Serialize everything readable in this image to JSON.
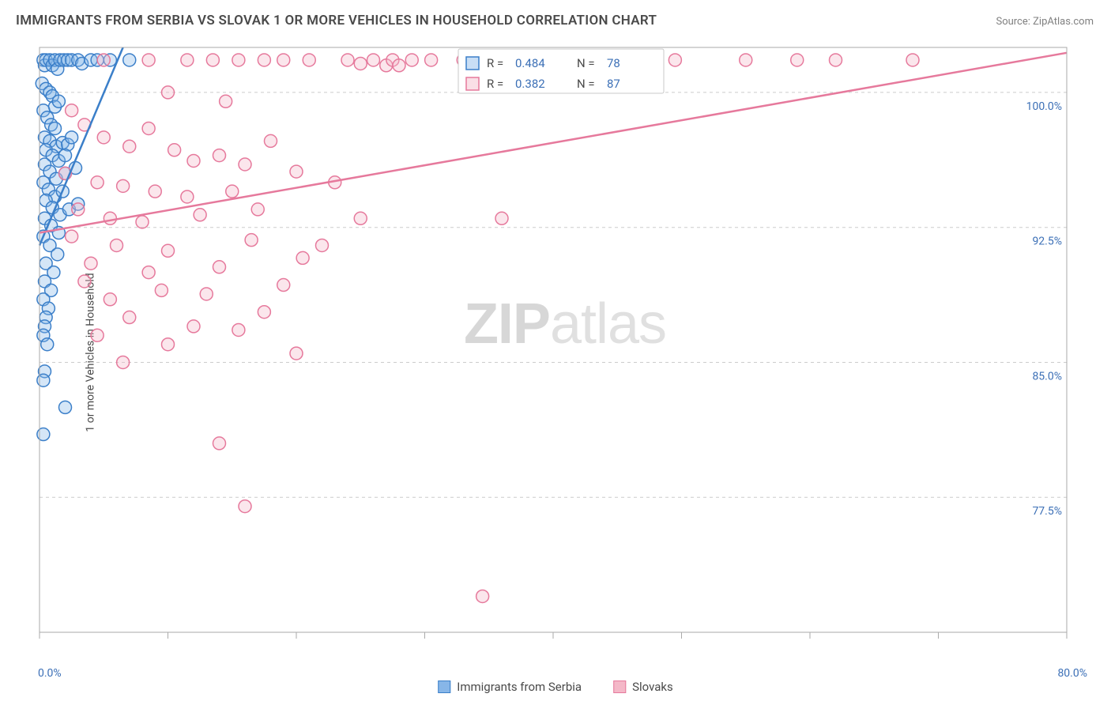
{
  "title": "IMMIGRANTS FROM SERBIA VS SLOVAK 1 OR MORE VEHICLES IN HOUSEHOLD CORRELATION CHART",
  "source": "Source: ZipAtlas.com",
  "watermark_zip": "ZIP",
  "watermark_atlas": "atlas",
  "y_axis_label": "1 or more Vehicles in Household",
  "chart": {
    "type": "scatter",
    "background_color": "#ffffff",
    "grid_color": "#cccccc",
    "axis_color": "#aaaaaa",
    "x_domain": [
      0,
      80
    ],
    "y_domain": [
      70,
      102.5
    ],
    "y_ticks": [
      77.5,
      85.0,
      92.5,
      100.0
    ],
    "y_tick_labels": [
      "77.5%",
      "85.0%",
      "92.5%",
      "100.0%"
    ],
    "x_ticks": [
      0,
      10,
      20,
      30,
      40,
      50,
      60,
      70,
      80
    ],
    "x_origin_label": "0.0%",
    "x_max_label": "80.0%",
    "marker_radius": 8,
    "series": [
      {
        "name": "Immigrants from Serbia",
        "color_fill": "#87b6e8",
        "color_stroke": "#3b7fc9",
        "r_value": "0.484",
        "n_value": "78",
        "trend": {
          "x1": 0,
          "y1": 91.5,
          "x2": 6.5,
          "y2": 102.5
        },
        "points": [
          [
            0.3,
            101.8
          ],
          [
            0.4,
            101.5
          ],
          [
            0.5,
            101.8
          ],
          [
            0.8,
            101.8
          ],
          [
            1.0,
            101.5
          ],
          [
            1.2,
            101.8
          ],
          [
            1.4,
            101.3
          ],
          [
            1.6,
            101.8
          ],
          [
            1.9,
            101.8
          ],
          [
            2.2,
            101.8
          ],
          [
            2.5,
            101.8
          ],
          [
            3.0,
            101.8
          ],
          [
            3.3,
            101.6
          ],
          [
            4.0,
            101.8
          ],
          [
            4.5,
            101.8
          ],
          [
            5.5,
            101.8
          ],
          [
            7.0,
            101.8
          ],
          [
            0.2,
            100.5
          ],
          [
            0.5,
            100.2
          ],
          [
            0.8,
            100.0
          ],
          [
            1.0,
            99.8
          ],
          [
            1.2,
            99.2
          ],
          [
            1.5,
            99.5
          ],
          [
            0.3,
            99.0
          ],
          [
            0.6,
            98.6
          ],
          [
            0.9,
            98.2
          ],
          [
            1.2,
            98.0
          ],
          [
            0.4,
            97.5
          ],
          [
            0.8,
            97.3
          ],
          [
            1.3,
            97.0
          ],
          [
            1.8,
            97.2
          ],
          [
            2.2,
            97.1
          ],
          [
            2.5,
            97.5
          ],
          [
            0.5,
            96.8
          ],
          [
            1.0,
            96.5
          ],
          [
            1.5,
            96.2
          ],
          [
            2.0,
            96.5
          ],
          [
            0.4,
            96.0
          ],
          [
            0.8,
            95.6
          ],
          [
            1.3,
            95.2
          ],
          [
            2.0,
            95.5
          ],
          [
            2.8,
            95.8
          ],
          [
            0.3,
            95.0
          ],
          [
            0.7,
            94.6
          ],
          [
            1.2,
            94.2
          ],
          [
            1.8,
            94.5
          ],
          [
            0.5,
            94.0
          ],
          [
            1.0,
            93.6
          ],
          [
            1.6,
            93.2
          ],
          [
            2.3,
            93.5
          ],
          [
            3.0,
            93.8
          ],
          [
            0.4,
            93.0
          ],
          [
            0.9,
            92.6
          ],
          [
            1.5,
            92.2
          ],
          [
            0.3,
            92.0
          ],
          [
            0.8,
            91.5
          ],
          [
            1.4,
            91.0
          ],
          [
            0.5,
            90.5
          ],
          [
            1.1,
            90.0
          ],
          [
            0.4,
            89.5
          ],
          [
            0.9,
            89.0
          ],
          [
            0.3,
            88.5
          ],
          [
            0.7,
            88.0
          ],
          [
            0.5,
            87.5
          ],
          [
            0.4,
            87.0
          ],
          [
            0.3,
            86.5
          ],
          [
            0.6,
            86.0
          ],
          [
            0.4,
            84.5
          ],
          [
            0.3,
            84.0
          ],
          [
            2.0,
            82.5
          ],
          [
            0.3,
            81.0
          ]
        ]
      },
      {
        "name": "Slovaks",
        "color_fill": "#f4b8c8",
        "color_stroke": "#e6799c",
        "r_value": "0.382",
        "n_value": "87",
        "trend": {
          "x1": 0,
          "y1": 92.2,
          "x2": 80,
          "y2": 102.2
        },
        "points": [
          [
            5.0,
            101.8
          ],
          [
            8.5,
            101.8
          ],
          [
            11.5,
            101.8
          ],
          [
            13.5,
            101.8
          ],
          [
            15.5,
            101.8
          ],
          [
            17.5,
            101.8
          ],
          [
            19.0,
            101.8
          ],
          [
            21.0,
            101.8
          ],
          [
            24.0,
            101.8
          ],
          [
            25.0,
            101.6
          ],
          [
            26.0,
            101.8
          ],
          [
            27.0,
            101.5
          ],
          [
            27.5,
            101.8
          ],
          [
            28.0,
            101.5
          ],
          [
            29.0,
            101.8
          ],
          [
            30.5,
            101.8
          ],
          [
            33.0,
            101.8
          ],
          [
            35.5,
            101.8
          ],
          [
            38.0,
            101.8
          ],
          [
            43.0,
            101.8
          ],
          [
            45.0,
            101.8
          ],
          [
            46.5,
            101.8
          ],
          [
            48.0,
            101.8
          ],
          [
            49.5,
            101.8
          ],
          [
            55.0,
            101.8
          ],
          [
            59.0,
            101.8
          ],
          [
            62.0,
            101.8
          ],
          [
            68.0,
            101.8
          ],
          [
            10.0,
            100.0
          ],
          [
            14.5,
            99.5
          ],
          [
            2.5,
            99.0
          ],
          [
            3.5,
            98.2
          ],
          [
            5.0,
            97.5
          ],
          [
            7.0,
            97.0
          ],
          [
            8.5,
            98.0
          ],
          [
            10.5,
            96.8
          ],
          [
            12.0,
            96.2
          ],
          [
            14.0,
            96.5
          ],
          [
            16.0,
            96.0
          ],
          [
            18.0,
            97.3
          ],
          [
            2.0,
            95.5
          ],
          [
            4.5,
            95.0
          ],
          [
            6.5,
            94.8
          ],
          [
            9.0,
            94.5
          ],
          [
            11.5,
            94.2
          ],
          [
            15.0,
            94.5
          ],
          [
            20.0,
            95.6
          ],
          [
            23.0,
            95.0
          ],
          [
            3.0,
            93.5
          ],
          [
            5.5,
            93.0
          ],
          [
            8.0,
            92.8
          ],
          [
            12.5,
            93.2
          ],
          [
            17.0,
            93.5
          ],
          [
            25.0,
            93.0
          ],
          [
            36.0,
            93.0
          ],
          [
            2.5,
            92.0
          ],
          [
            6.0,
            91.5
          ],
          [
            10.0,
            91.2
          ],
          [
            16.5,
            91.8
          ],
          [
            22.0,
            91.5
          ],
          [
            4.0,
            90.5
          ],
          [
            8.5,
            90.0
          ],
          [
            14.0,
            90.3
          ],
          [
            20.5,
            90.8
          ],
          [
            3.5,
            89.5
          ],
          [
            9.5,
            89.0
          ],
          [
            5.5,
            88.5
          ],
          [
            13.0,
            88.8
          ],
          [
            19.0,
            89.3
          ],
          [
            7.0,
            87.5
          ],
          [
            12.0,
            87.0
          ],
          [
            17.5,
            87.8
          ],
          [
            4.5,
            86.5
          ],
          [
            10.0,
            86.0
          ],
          [
            15.5,
            86.8
          ],
          [
            20.0,
            85.5
          ],
          [
            6.5,
            85.0
          ],
          [
            14.0,
            80.5
          ],
          [
            16.0,
            77.0
          ],
          [
            34.5,
            72.0
          ]
        ]
      }
    ],
    "legend_top": {
      "r_label": "R =",
      "n_label": "N ="
    },
    "bottom_legend": [
      {
        "label": "Immigrants from Serbia",
        "fill": "#87b6e8",
        "stroke": "#3b7fc9"
      },
      {
        "label": "Slovaks",
        "fill": "#f4b8c8",
        "stroke": "#e6799c"
      }
    ]
  }
}
